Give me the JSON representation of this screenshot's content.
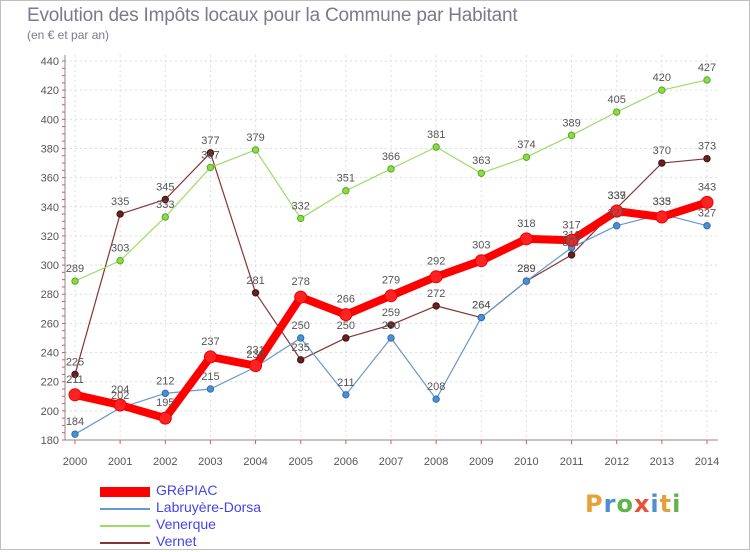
{
  "header": {
    "title": "Evolution des Impôts locaux pour la Commune par Habitant",
    "subtitle": "(en € et par an)"
  },
  "logo": {
    "text": "Proxiti",
    "letters": [
      {
        "ch": "P",
        "color": "#e8a13a"
      },
      {
        "ch": "r",
        "color": "#4d8fd1"
      },
      {
        "ch": "o",
        "color": "#5fb548"
      },
      {
        "ch": "x",
        "color": "#e8503a"
      },
      {
        "ch": "i",
        "color": "#4d8fd1"
      },
      {
        "ch": "t",
        "color": "#e8a13a"
      },
      {
        "ch": "i",
        "color": "#5fb548"
      }
    ]
  },
  "chart_data": {
    "type": "line",
    "title": "Evolution des Impôts locaux pour la Commune par Habitant",
    "subtitle": "(en € et par an)",
    "x": [
      2000,
      2001,
      2002,
      2003,
      2004,
      2005,
      2006,
      2007,
      2008,
      2009,
      2010,
      2011,
      2012,
      2013,
      2014
    ],
    "ylim": [
      180,
      440
    ],
    "yticks": [
      180,
      200,
      220,
      240,
      260,
      280,
      300,
      320,
      340,
      360,
      380,
      400,
      420,
      440
    ],
    "grid": true,
    "legend_position": "bottom-left",
    "series": [
      {
        "name": "GRéPIAC",
        "color": "#ff0000",
        "values": [
          211,
          204,
          195,
          237,
          231,
          278,
          266,
          279,
          292,
          303,
          318,
          317,
          337,
          333,
          343
        ]
      },
      {
        "name": "Labruyère-Dorsa",
        "color": "#6699cc",
        "values": [
          184,
          202,
          212,
          215,
          230,
          250,
          211,
          250,
          208,
          264,
          289,
          312,
          327,
          335,
          327
        ]
      },
      {
        "name": "Venerque",
        "color": "#99dd66",
        "values": [
          289,
          303,
          333,
          367,
          379,
          332,
          351,
          366,
          381,
          363,
          374,
          389,
          405,
          420,
          427
        ]
      },
      {
        "name": "Vernet",
        "color": "#883333",
        "values": [
          225,
          335,
          345,
          377,
          281,
          235,
          250,
          259,
          272,
          264,
          289,
          307,
          339,
          370,
          373
        ]
      }
    ]
  }
}
